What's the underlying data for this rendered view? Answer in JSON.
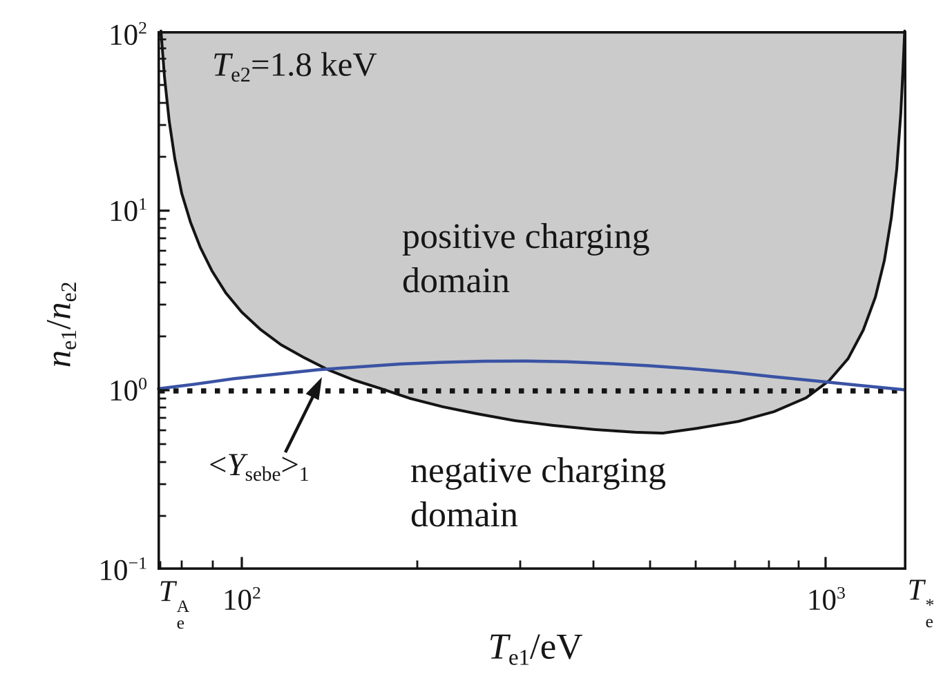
{
  "labels": {
    "annotation": {
      "symbol": "T",
      "sub": "e2",
      "rest": "=1.8 keV"
    },
    "positive": {
      "line1": "positive charging",
      "line2": "domain"
    },
    "negative": {
      "line1": "negative charging",
      "line2": "domain"
    },
    "curve": {
      "lt": "<",
      "symbol": "Y",
      "sub": "sebe",
      "gt": ">",
      "index": "1"
    },
    "x_axis": {
      "symbol": "T",
      "sub": "e1",
      "rest": "/eV"
    },
    "y_axis": {
      "n1": "n",
      "sub1": "e1",
      "slash": "/",
      "n2": "n",
      "sub2": "e2"
    }
  },
  "axes": {
    "y_ticks": [
      {
        "base": "10",
        "exp": "2"
      },
      {
        "base": "10",
        "exp": "1"
      },
      {
        "base": "10",
        "exp": "0"
      },
      {
        "base": "10",
        "exp": "−1"
      }
    ],
    "x_ticks": [
      {
        "symbol": "T",
        "sub": "e",
        "sup": "A"
      },
      {
        "base": "10",
        "exp": "2"
      },
      {
        "base": "10",
        "exp": "3"
      },
      {
        "symbol": "T",
        "sub": "e",
        "sup": "*"
      }
    ]
  },
  "colors": {
    "boundary": "#141414",
    "contour_blue": "#3a53a4",
    "region_fill": "#cbcbcb",
    "dotted_line": "#141414",
    "text": "#161616"
  },
  "chart_data": {
    "type": "line",
    "title": "",
    "xlabel": "T_e1 / eV",
    "ylabel": "n_e1 / n_e2",
    "x_scale": "log",
    "y_scale": "log",
    "xlim": [
      72,
      1366
    ],
    "ylim": [
      0.1,
      100
    ],
    "grid": false,
    "legend": "none",
    "annotation_text": "T_e2 = 1.8 keV",
    "special_x_values": {
      "Te_A": 72,
      "Te_star": 1366
    },
    "regions": [
      {
        "name": "positive charging domain",
        "fill": "#cbcbcb",
        "bounded_by": "boundary curve and top axis"
      },
      {
        "name": "negative charging domain",
        "fill": "#ffffff",
        "location": "below boundary curve"
      }
    ],
    "reference_line": {
      "y": 1,
      "style": "dotted",
      "color": "#141414"
    },
    "series": [
      {
        "name": "charging domain boundary",
        "color": "#141414",
        "points": [
          [
            72.7,
            100
          ],
          [
            73.7,
            56
          ],
          [
            75.1,
            31.6
          ],
          [
            76.8,
            19.4
          ],
          [
            78.9,
            12.5
          ],
          [
            81.7,
            8.6
          ],
          [
            84.9,
            6.25
          ],
          [
            88.9,
            4.62
          ],
          [
            93.9,
            3.48
          ],
          [
            100,
            2.72
          ],
          [
            107.6,
            2.18
          ],
          [
            116.8,
            1.79
          ],
          [
            127.8,
            1.52
          ],
          [
            140.6,
            1.3
          ],
          [
            155.5,
            1.14
          ],
          [
            173.3,
            1.02
          ],
          [
            194.4,
            0.9
          ],
          [
            220.5,
            0.81
          ],
          [
            252.6,
            0.74
          ],
          [
            293.5,
            0.677
          ],
          [
            340.9,
            0.637
          ],
          [
            401.6,
            0.604
          ],
          [
            473.2,
            0.583
          ],
          [
            526,
            0.577
          ],
          [
            603,
            0.614
          ],
          [
            710,
            0.671
          ],
          [
            816,
            0.76
          ],
          [
            926,
            0.907
          ],
          [
            1014,
            1.13
          ],
          [
            1093,
            1.5
          ],
          [
            1160,
            2.16
          ],
          [
            1217,
            3.3
          ],
          [
            1261,
            5.28
          ],
          [
            1296,
            9.14
          ],
          [
            1324,
            17
          ],
          [
            1345,
            34.5
          ],
          [
            1356,
            58.5
          ],
          [
            1366,
            100
          ]
        ]
      },
      {
        "name": "<Y_sebe>_1 unity yield contour",
        "color": "#3a53a4",
        "points": [
          [
            72,
            1.02
          ],
          [
            83,
            1.08
          ],
          [
            97,
            1.16
          ],
          [
            115,
            1.23
          ],
          [
            135,
            1.3
          ],
          [
            159,
            1.35
          ],
          [
            187,
            1.4
          ],
          [
            220,
            1.43
          ],
          [
            260,
            1.45
          ],
          [
            306,
            1.455
          ],
          [
            360,
            1.44
          ],
          [
            423,
            1.41
          ],
          [
            498,
            1.37
          ],
          [
            586,
            1.32
          ],
          [
            690,
            1.26
          ],
          [
            812,
            1.19
          ],
          [
            955,
            1.13
          ],
          [
            1124,
            1.07
          ],
          [
            1366,
            1.005
          ]
        ]
      }
    ]
  }
}
